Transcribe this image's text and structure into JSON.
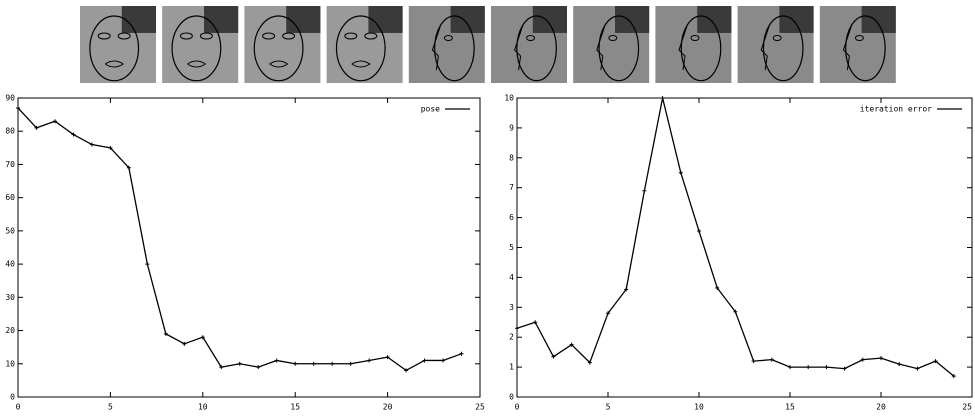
{
  "chart_data": [
    {
      "type": "line",
      "x": [
        0,
        1,
        2,
        3,
        4,
        5,
        6,
        7,
        8,
        9,
        10,
        11,
        12,
        13,
        14,
        15,
        16,
        17,
        18,
        19,
        20,
        21,
        22,
        23,
        24
      ],
      "series": [
        {
          "name": "pose",
          "color": "#000000",
          "values": [
            87,
            81,
            83,
            79,
            76,
            75,
            69,
            40,
            19,
            16,
            18,
            9,
            10,
            9,
            11,
            10,
            10,
            10,
            10,
            11,
            12,
            8,
            11,
            11,
            13
          ]
        }
      ],
      "xlim": [
        0,
        25
      ],
      "xticks": [
        0,
        5,
        10,
        15,
        20,
        25
      ],
      "ylim": [
        0,
        90
      ],
      "yticks": [
        0,
        10,
        20,
        30,
        40,
        50,
        60,
        70,
        80,
        90
      ],
      "legend": "top-right"
    },
    {
      "type": "line",
      "x": [
        0,
        1,
        2,
        3,
        4,
        5,
        6,
        7,
        8,
        9,
        10,
        11,
        12,
        13,
        14,
        15,
        16,
        17,
        18,
        19,
        20,
        21,
        22,
        23,
        24
      ],
      "series": [
        {
          "name": "iteration error",
          "color": "#000000",
          "values": [
            2.3,
            2.5,
            1.35,
            1.75,
            1.15,
            2.8,
            3.6,
            6.9,
            10,
            7.5,
            5.55,
            3.65,
            2.85,
            1.2,
            1.25,
            1.0,
            1.0,
            1.0,
            0.95,
            1.25,
            1.3,
            1.1,
            0.95,
            1.2,
            0.7
          ]
        }
      ],
      "xlim": [
        0,
        25
      ],
      "xticks": [
        0,
        5,
        10,
        15,
        20,
        25
      ],
      "ylim": [
        0,
        10
      ],
      "yticks": [
        0,
        1,
        2,
        3,
        4,
        5,
        6,
        7,
        8,
        9,
        10
      ],
      "legend": "top-right"
    }
  ]
}
